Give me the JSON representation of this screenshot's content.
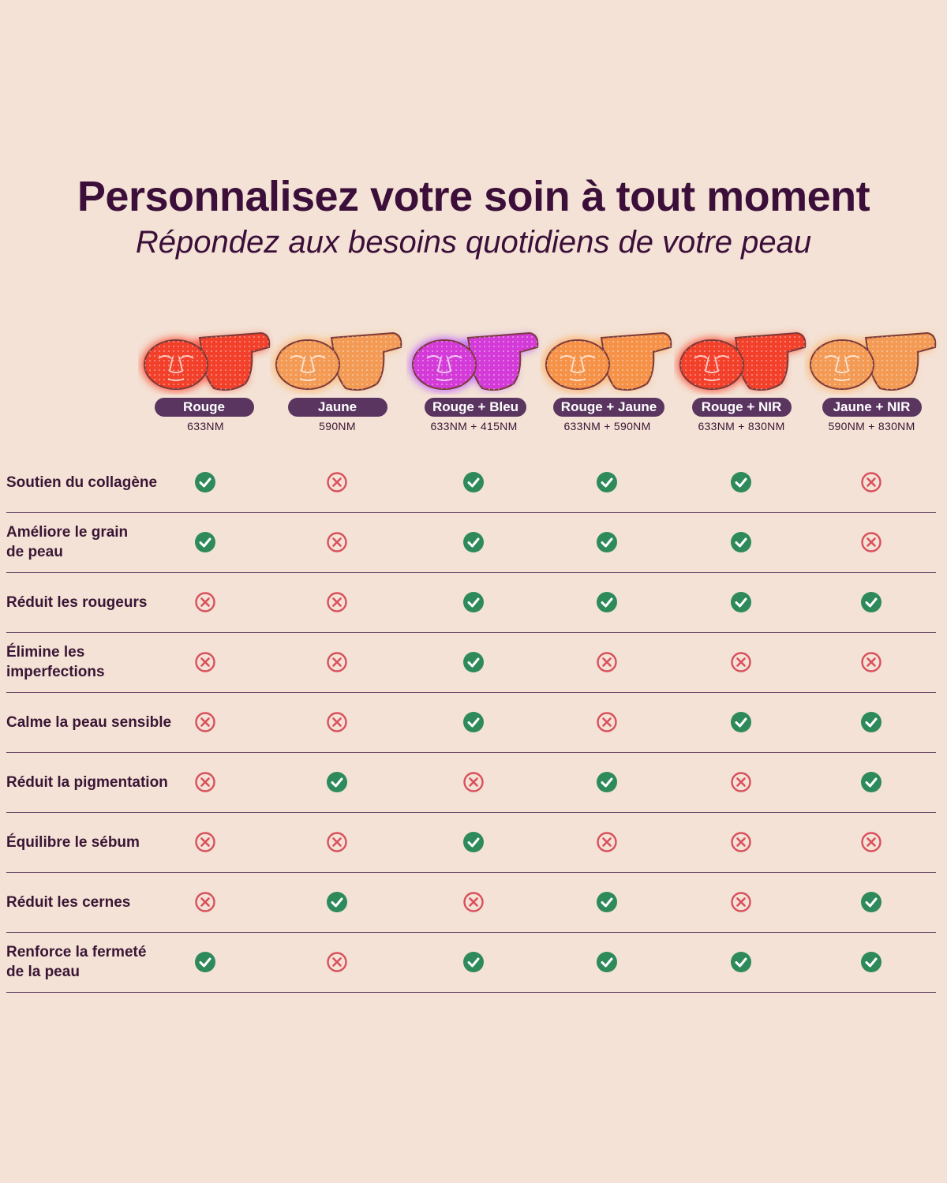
{
  "header": {
    "title": "Personnalisez votre soin à tout moment",
    "subtitle": "Répondez aux besoins quotidiens de votre peau"
  },
  "colors": {
    "background": "#f3e2d5",
    "heading": "#3b0f39",
    "pill": "#5a3560",
    "check": "#2e8a5a",
    "cross": "#d9505c"
  },
  "modes": [
    {
      "label": "Rouge",
      "wavelength": "633NM",
      "mask_color": "#f2402a",
      "glow": "#ff3a22"
    },
    {
      "label": "Jaune",
      "wavelength": "590NM",
      "mask_color": "#f39a55",
      "glow": "#ffad60"
    },
    {
      "label": "Rouge + Bleu",
      "wavelength": "633NM + 415NM",
      "mask_color": "#d33ad8",
      "glow": "#b850ff"
    },
    {
      "label": "Rouge + Jaune",
      "wavelength": "633NM + 590NM",
      "mask_color": "#f59248",
      "glow": "#ffa24e"
    },
    {
      "label": "Rouge + NIR",
      "wavelength": "633NM + 830NM",
      "mask_color": "#f2402a",
      "glow": "#ff3a22"
    },
    {
      "label": "Jaune + NIR",
      "wavelength": "590NM + 830NM",
      "mask_color": "#f39a55",
      "glow": "#ffad60"
    }
  ],
  "benefits": [
    {
      "label": "Soutien du collagène",
      "values": [
        true,
        false,
        true,
        true,
        true,
        false
      ]
    },
    {
      "label": "Améliore le grain\nde peau",
      "values": [
        true,
        false,
        true,
        true,
        true,
        false
      ]
    },
    {
      "label": "Réduit les rougeurs",
      "values": [
        false,
        false,
        true,
        true,
        true,
        true
      ]
    },
    {
      "label": "Élimine les\nimperfections",
      "values": [
        false,
        false,
        true,
        false,
        false,
        false
      ]
    },
    {
      "label": "Calme la peau sensible",
      "values": [
        false,
        false,
        true,
        false,
        true,
        true
      ]
    },
    {
      "label": "Réduit la pigmentation",
      "values": [
        false,
        true,
        false,
        true,
        false,
        true
      ]
    },
    {
      "label": "Équilibre le sébum",
      "values": [
        false,
        false,
        true,
        false,
        false,
        false
      ]
    },
    {
      "label": "Réduit les cernes",
      "values": [
        false,
        true,
        false,
        true,
        false,
        true
      ]
    },
    {
      "label": "Renforce la fermeté\nde la peau",
      "values": [
        true,
        false,
        true,
        true,
        true,
        true
      ]
    }
  ]
}
